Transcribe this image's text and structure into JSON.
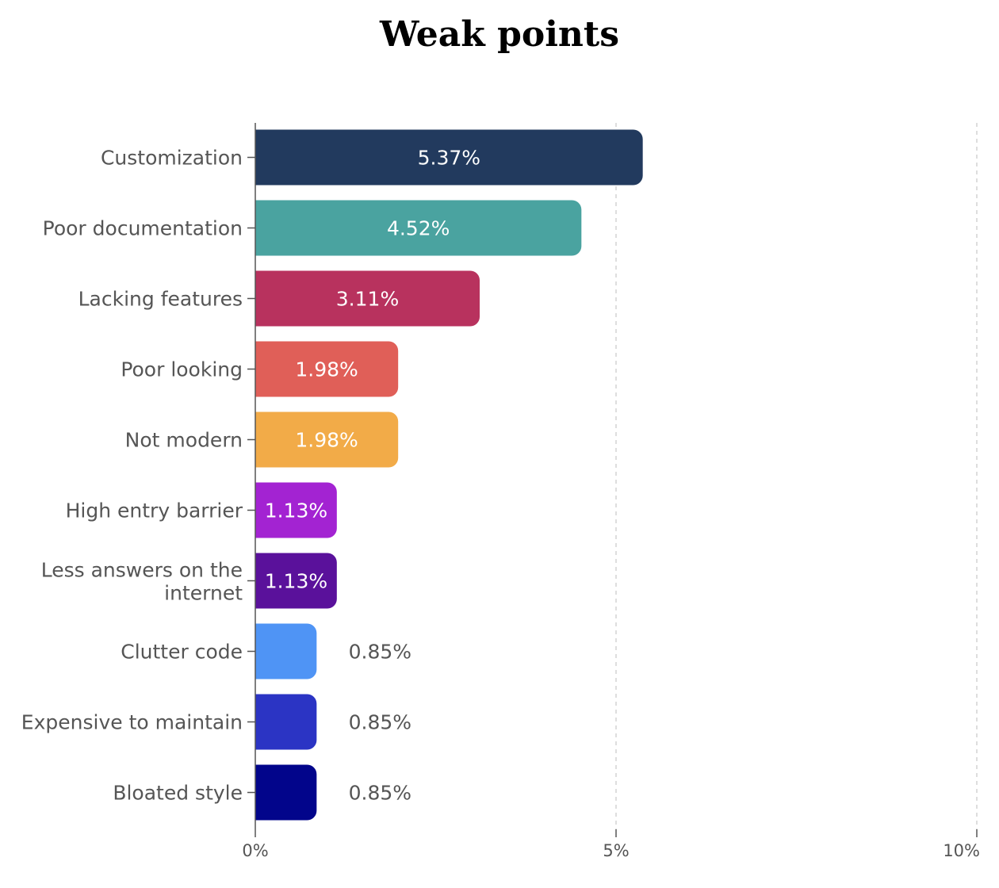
{
  "chart_data": {
    "type": "bar",
    "orientation": "horizontal",
    "title": "Weak points",
    "xlabel": "",
    "ylabel": "",
    "xlim": [
      0,
      10
    ],
    "x_ticks": [
      {
        "value": 0,
        "label": "0%"
      },
      {
        "value": 5,
        "label": "5%"
      },
      {
        "value": 10,
        "label": "10%"
      }
    ],
    "grid": "vertical dashed",
    "categories": [
      "Customization",
      "Poor documentation",
      "Lacking features",
      "Poor looking",
      "Not modern",
      "High entry barrier",
      "Less answers on the internet",
      "Clutter code",
      "Expensive to maintain",
      "Bloated style"
    ],
    "values": [
      5.37,
      4.52,
      3.11,
      1.98,
      1.98,
      1.13,
      1.13,
      0.85,
      0.85,
      0.85
    ],
    "value_labels": [
      "5.37%",
      "4.52%",
      "3.11%",
      "1.98%",
      "1.98%",
      "1.13%",
      "1.13%",
      "0.85%",
      "0.85%",
      "0.85%"
    ],
    "colors": [
      "#223a5e",
      "#4aa3a0",
      "#b8325e",
      "#e05f58",
      "#f2ab48",
      "#a323d2",
      "#5a119b",
      "#4f94f5",
      "#2b34c4",
      "#02058b"
    ]
  }
}
